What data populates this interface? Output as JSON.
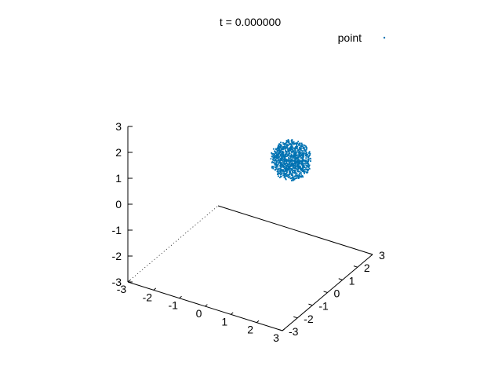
{
  "chart_data": {
    "type": "scatter",
    "projection": "3d",
    "title": "t = 0.000000",
    "legend_position": "top-right",
    "series": [
      {
        "name": "point",
        "color": "#0072b2",
        "marker": "dot",
        "distribution": "uniform sphere",
        "center": [
          1.0,
          1.0,
          1.0
        ],
        "radius": 0.7,
        "approx_count": 1000
      }
    ],
    "axes": {
      "x": {
        "range": [
          -3,
          3
        ],
        "ticks": [
          "-3",
          "-2",
          "-1",
          "0",
          "1",
          "2",
          "3"
        ]
      },
      "y": {
        "range": [
          -3,
          3
        ],
        "ticks": [
          "-3",
          "-2",
          "-1",
          "0",
          "1",
          "2",
          "3"
        ]
      },
      "z": {
        "range": [
          -3,
          3
        ],
        "ticks": [
          "-3",
          "-2",
          "-1",
          "0",
          "1",
          "2",
          "3"
        ]
      }
    },
    "xlabel": "",
    "ylabel": "",
    "zlabel": "",
    "grid": false,
    "border": "base box"
  }
}
